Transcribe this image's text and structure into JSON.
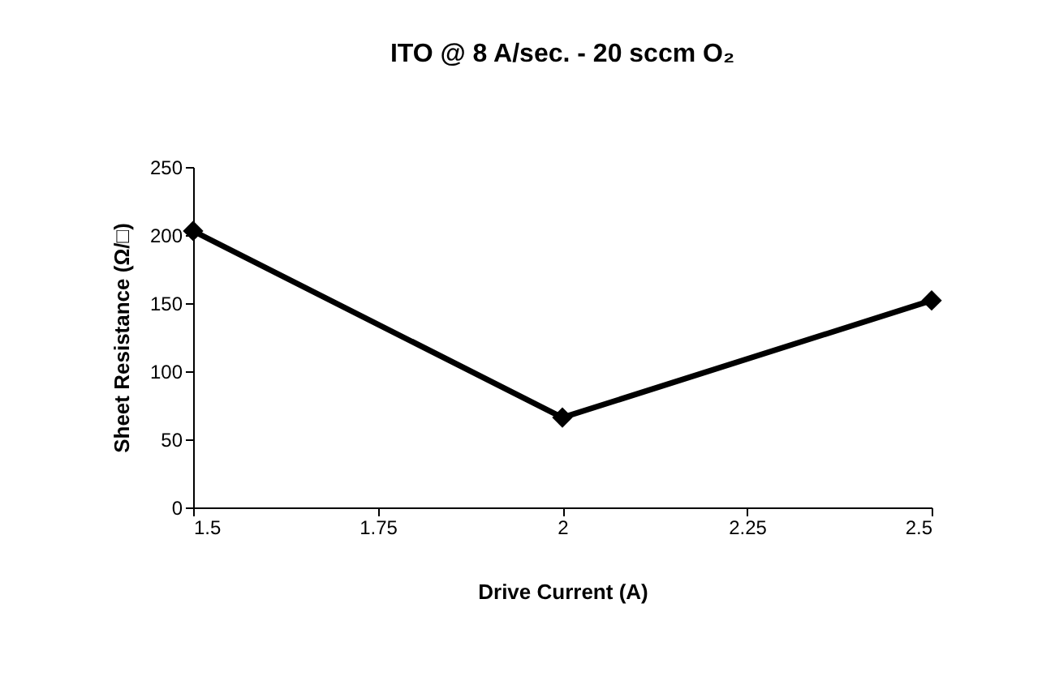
{
  "chart_data": {
    "type": "line",
    "title": "ITO @ 8 A/sec. - 20 sccm O₂",
    "xlabel": "Drive Current (A)",
    "ylabel": "Sheet Resistance (Ω/□)",
    "x": [
      1.5,
      2,
      2.5
    ],
    "series": [
      {
        "color": "#000000",
        "values": [
          203,
          66,
          152
        ]
      }
    ],
    "xlim": [
      1.5,
      2.5
    ],
    "xticks": [
      1.5,
      1.75,
      2,
      2.25,
      2.5
    ],
    "ylim": [
      0,
      250
    ],
    "yticks": [
      0,
      50,
      100,
      150,
      200,
      250
    ],
    "grid": false,
    "marker": "diamond",
    "line_style": "solid"
  }
}
